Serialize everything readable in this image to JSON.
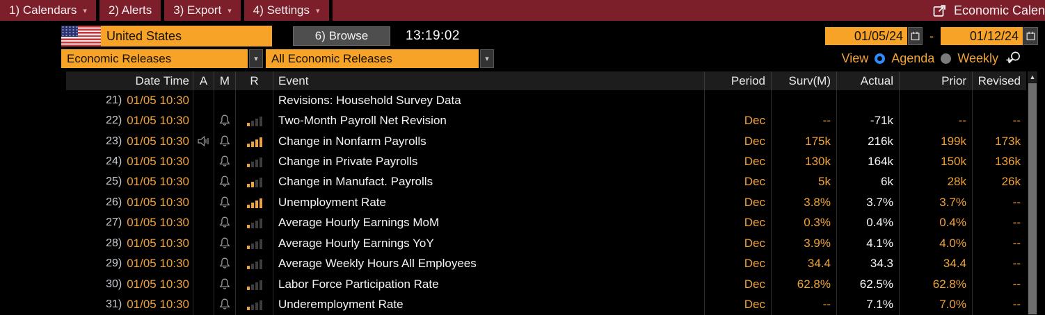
{
  "menu": {
    "items": [
      {
        "label": "1) Calendars",
        "dropdown": true
      },
      {
        "label": "2) Alerts",
        "dropdown": false
      },
      {
        "label": "3) Export",
        "dropdown": true
      },
      {
        "label": "4) Settings",
        "dropdown": true
      }
    ],
    "title": "Economic Calen"
  },
  "toolbar": {
    "country": "United States",
    "browse_label": "6) Browse",
    "time": "13:19:02",
    "date_from": "01/05/24",
    "range_separator": "-",
    "date_to": "01/12/24"
  },
  "filters": {
    "category": "Economic Releases",
    "subcategory": "All Economic Releases",
    "view_label": "View",
    "view_options": [
      {
        "label": "Agenda",
        "selected": true
      },
      {
        "label": "Weekly",
        "selected": false
      }
    ]
  },
  "icons": {
    "caret_down": "▾",
    "sort_up": "▲"
  },
  "table": {
    "headers": {
      "date_time": "Date Time",
      "a": "A",
      "m": "M",
      "r": "R",
      "event": "Event",
      "period": "Period",
      "surv": "Surv(M)",
      "actual": "Actual",
      "prior": "Prior",
      "revised": "Revised"
    },
    "rows": [
      {
        "num": "21)",
        "date_time": "01/05 10:30",
        "audio": false,
        "bell": false,
        "relevance": 0,
        "event": "Revisions: Household Survey Data",
        "period": "",
        "surv": "",
        "actual": "",
        "prior": "",
        "revised": ""
      },
      {
        "num": "22)",
        "date_time": "01/05 10:30",
        "audio": false,
        "bell": true,
        "relevance": 1,
        "event": "Two-Month Payroll Net Revision",
        "period": "Dec",
        "surv": "--",
        "actual": "-71k",
        "prior": "--",
        "revised": "--"
      },
      {
        "num": "23)",
        "date_time": "01/05 10:30",
        "audio": true,
        "bell": true,
        "relevance": 4,
        "event": "Change in Nonfarm Payrolls",
        "period": "Dec",
        "surv": "175k",
        "actual": "216k",
        "prior": "199k",
        "revised": "173k"
      },
      {
        "num": "24)",
        "date_time": "01/05 10:30",
        "audio": false,
        "bell": true,
        "relevance": 1,
        "event": "Change in Private Payrolls",
        "period": "Dec",
        "surv": "130k",
        "actual": "164k",
        "prior": "150k",
        "revised": "136k"
      },
      {
        "num": "25)",
        "date_time": "01/05 10:30",
        "audio": false,
        "bell": true,
        "relevance": 2,
        "event": "Change in Manufact. Payrolls",
        "period": "Dec",
        "surv": "5k",
        "actual": "6k",
        "prior": "28k",
        "revised": "26k"
      },
      {
        "num": "26)",
        "date_time": "01/05 10:30",
        "audio": false,
        "bell": true,
        "relevance": 4,
        "event": "Unemployment Rate",
        "period": "Dec",
        "surv": "3.8%",
        "actual": "3.7%",
        "prior": "3.7%",
        "revised": "--"
      },
      {
        "num": "27)",
        "date_time": "01/05 10:30",
        "audio": false,
        "bell": true,
        "relevance": 1,
        "event": "Average Hourly Earnings MoM",
        "period": "Dec",
        "surv": "0.3%",
        "actual": "0.4%",
        "prior": "0.4%",
        "revised": "--"
      },
      {
        "num": "28)",
        "date_time": "01/05 10:30",
        "audio": false,
        "bell": true,
        "relevance": 1,
        "event": "Average Hourly Earnings YoY",
        "period": "Dec",
        "surv": "3.9%",
        "actual": "4.1%",
        "prior": "4.0%",
        "revised": "--"
      },
      {
        "num": "29)",
        "date_time": "01/05 10:30",
        "audio": false,
        "bell": true,
        "relevance": 1,
        "event": "Average Weekly Hours All Employees",
        "period": "Dec",
        "surv": "34.4",
        "actual": "34.3",
        "prior": "34.4",
        "revised": "--"
      },
      {
        "num": "30)",
        "date_time": "01/05 10:30",
        "audio": false,
        "bell": true,
        "relevance": 1,
        "event": "Labor Force Participation Rate",
        "period": "Dec",
        "surv": "62.8%",
        "actual": "62.5%",
        "prior": "62.8%",
        "revised": "--"
      },
      {
        "num": "31)",
        "date_time": "01/05 10:30",
        "audio": false,
        "bell": true,
        "relevance": 1,
        "event": "Underemployment Rate",
        "period": "Dec",
        "surv": "--",
        "actual": "7.1%",
        "prior": "7.0%",
        "revised": "--"
      }
    ]
  },
  "colors": {
    "menubar_red": "#7c1f2a",
    "amber_field": "#f7a328",
    "amber_text": "#f0a23a",
    "radio_blue": "#2f8cff",
    "actual_white": "#f6f6f6",
    "header_bg": "#1d1d1d"
  }
}
